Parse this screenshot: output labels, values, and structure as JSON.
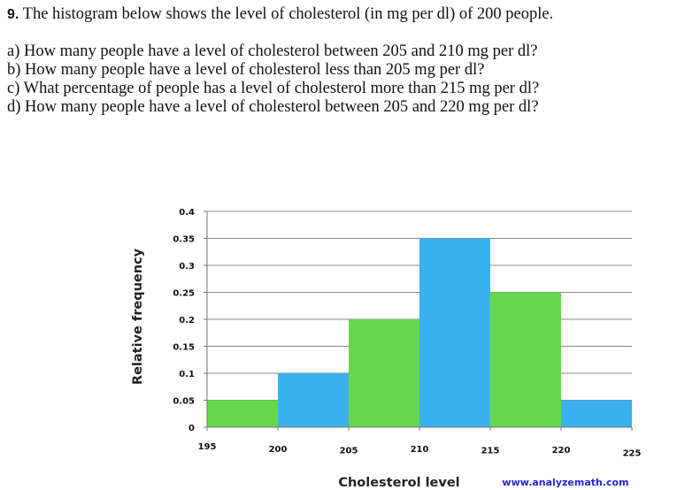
{
  "problem": {
    "number": "9.",
    "statement": "The histogram below shows the level of cholesterol (in mg per dl) of 200 people.",
    "parts": [
      "a) How many people have a level of cholesterol between 205 and 210 mg per dl?",
      "b) How many people have a level of cholesterol less than 205 mg per dl?",
      "c) What percentage of people has a level of cholesterol more than 215 mg per dl?",
      "d) How many people have a level of cholesterol between 205 and 220 mg per dl?"
    ]
  },
  "chart_data": {
    "type": "bar",
    "bins": [
      [
        195,
        200
      ],
      [
        200,
        205
      ],
      [
        205,
        210
      ],
      [
        210,
        215
      ],
      [
        215,
        220
      ],
      [
        220,
        225
      ]
    ],
    "values": [
      0.05,
      0.1,
      0.2,
      0.35,
      0.25,
      0.05
    ],
    "colors": [
      "#66d64b",
      "#3bb0ee",
      "#66d64b",
      "#3bb0ee",
      "#66d64b",
      "#3bb0ee"
    ],
    "xlabel": "Cholesterol level",
    "ylabel": "Relative frequency",
    "xticks": [
      "195",
      "200",
      "205",
      "210",
      "215",
      "220",
      "225"
    ],
    "yticks": [
      "0",
      "0.05",
      "0.1",
      "0.15",
      "0.2",
      "0.25",
      "0.3",
      "0.35",
      "0.4"
    ],
    "xlim": [
      195,
      225
    ],
    "ylim": [
      0,
      0.4
    ],
    "grid": true,
    "source": "www.analyzemath.com"
  }
}
